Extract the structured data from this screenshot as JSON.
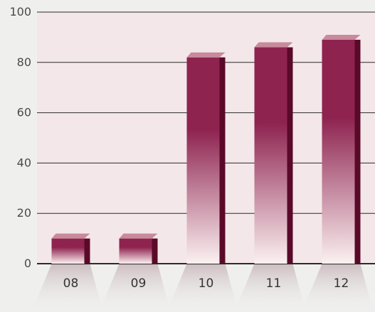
{
  "chart_data": {
    "type": "bar",
    "categories": [
      "08",
      "09",
      "10",
      "11",
      "12"
    ],
    "values": [
      10,
      10,
      82,
      86,
      89
    ],
    "title": "",
    "xlabel": "",
    "ylabel": "",
    "ylim": [
      0,
      100
    ],
    "yticks": [
      "0",
      "20",
      "40",
      "60",
      "80",
      "100"
    ],
    "grid": true,
    "legend": "none"
  },
  "colors": {
    "page_background": "#efefed",
    "plot_background": "#f4e7e9",
    "bar_dark": "#8e2350",
    "bar_light": "#fbf1f1",
    "bar_side": "#5a0a28",
    "bar_top": "#c88a9c",
    "gridline": "#2b2b2b"
  }
}
